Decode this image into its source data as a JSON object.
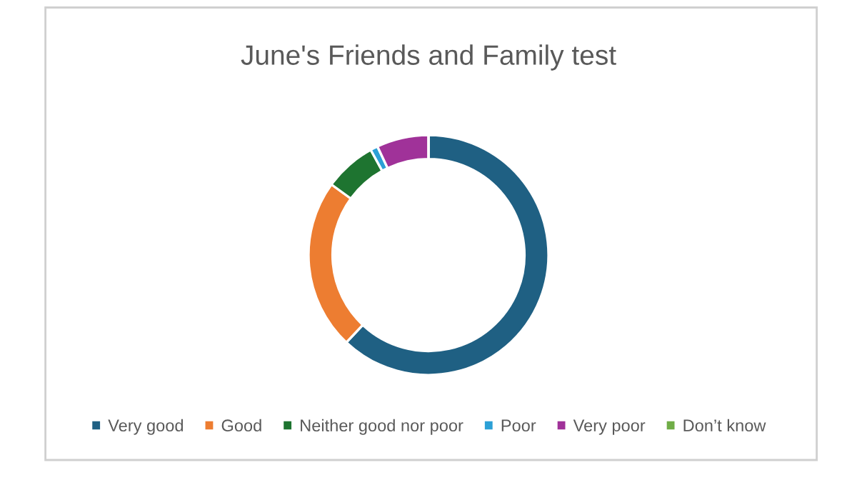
{
  "chart_data": {
    "type": "donut",
    "title": "June's Friends and Family test",
    "categories": [
      "Very good",
      "Good",
      "Neither good nor poor",
      "Poor",
      "Very poor",
      "Don’t know"
    ],
    "values": [
      62,
      23,
      7,
      1,
      7,
      0
    ],
    "colors": [
      "#1f6083",
      "#ed7d31",
      "#1e7430",
      "#2ca0d6",
      "#a03299",
      "#70ad47"
    ],
    "legend": "bottom"
  }
}
